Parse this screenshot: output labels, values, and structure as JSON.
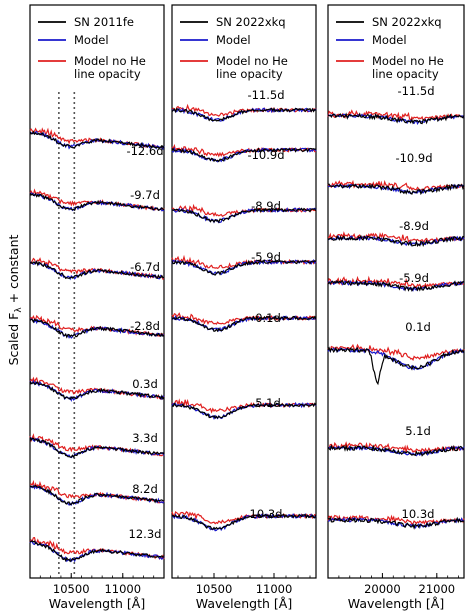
{
  "figure": {
    "ylabel": "Scaled F",
    "ylabel_sub": "λ",
    "ylabel_suffix": " + constant"
  },
  "chart_data": [
    {
      "type": "line",
      "panel": "left",
      "xlabel": "Wavelength [Å]",
      "xlim": [
        10100,
        11400
      ],
      "xticks": [
        10500,
        11000
      ],
      "xtick_labels": [
        "10500",
        "11000"
      ],
      "legend": [
        "SN 2011fe",
        "Model",
        "Model no He line opacity"
      ],
      "legend_placement": "top",
      "line_markers": [
        10380,
        10530
      ],
      "phases": [
        "-12.6d",
        "-9.7d",
        "-6.7d",
        "-2.8d",
        "0.3d",
        "3.3d",
        "8.2d",
        "12.3d"
      ],
      "series": [
        {
          "name": "SN 2011fe",
          "color": "#000000"
        },
        {
          "name": "Model",
          "color": "#1a1acc"
        },
        {
          "name": "Model no He line opacity",
          "color": "#e02020"
        }
      ]
    },
    {
      "type": "line",
      "panel": "middle",
      "xlabel": "Wavelength [Å]",
      "xlim": [
        10150,
        11350
      ],
      "xticks": [
        10500,
        11000
      ],
      "xtick_labels": [
        "10500",
        "11000"
      ],
      "legend": [
        "SN 2022xkq",
        "Model",
        "Model no He line opacity"
      ],
      "legend_placement": "top",
      "phases": [
        "-11.5d",
        "-10.9d",
        "-8.9d",
        "-5.9d",
        "0.1d",
        "5.1d",
        "10.3d"
      ],
      "series": [
        {
          "name": "SN 2022xkq",
          "color": "#000000"
        },
        {
          "name": "Model",
          "color": "#1a1acc"
        },
        {
          "name": "Model no He line opacity",
          "color": "#e02020"
        }
      ]
    },
    {
      "type": "line",
      "panel": "right",
      "xlabel": "Wavelength [Å]",
      "xlim": [
        19000,
        21500
      ],
      "xticks": [
        20000,
        21000
      ],
      "xtick_labels": [
        "20000",
        "21000"
      ],
      "legend": [
        "SN 2022xkq",
        "Model",
        "Model no He line opacity"
      ],
      "legend_placement": "top",
      "phases": [
        "-11.5d",
        "-10.9d",
        "-8.9d",
        "-5.9d",
        "0.1d",
        "5.1d",
        "10.3d"
      ],
      "series": [
        {
          "name": "SN 2022xkq",
          "color": "#000000"
        },
        {
          "name": "Model",
          "color": "#1a1acc"
        },
        {
          "name": "Model no He line opacity",
          "color": "#e02020"
        }
      ]
    }
  ]
}
